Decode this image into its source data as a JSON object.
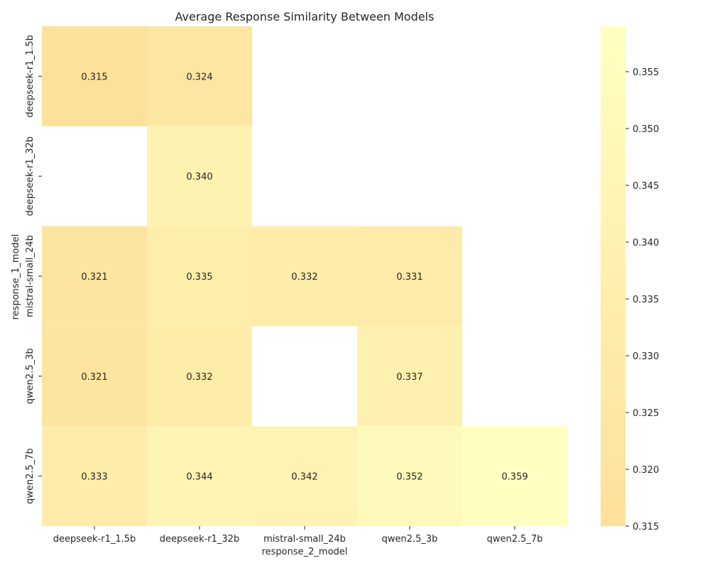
{
  "chart_data": {
    "type": "heatmap",
    "title": "Average Response Similarity Between Models",
    "xlabel": "response_2_model",
    "ylabel": "response_1_model",
    "x_categories": [
      "deepseek-r1_1.5b",
      "deepseek-r1_32b",
      "mistral-small_24b",
      "qwen2.5_3b",
      "qwen2.5_7b"
    ],
    "y_categories": [
      "deepseek-r1_1.5b",
      "deepseek-r1_32b",
      "mistral-small_24b",
      "qwen2.5_3b",
      "qwen2.5_7b"
    ],
    "values": [
      [
        0.315,
        0.324,
        null,
        null,
        null
      ],
      [
        null,
        0.34,
        null,
        null,
        null
      ],
      [
        0.321,
        0.335,
        0.332,
        0.331,
        null
      ],
      [
        0.321,
        0.332,
        null,
        0.337,
        null
      ],
      [
        0.333,
        0.344,
        0.342,
        0.352,
        0.359
      ]
    ],
    "value_labels": [
      [
        "0.315",
        "0.324",
        "",
        "",
        ""
      ],
      [
        "",
        "0.340",
        "",
        "",
        ""
      ],
      [
        "0.321",
        "0.335",
        "0.332",
        "0.331",
        ""
      ],
      [
        "0.321",
        "0.332",
        "",
        "0.337",
        ""
      ],
      [
        "0.333",
        "0.344",
        "0.342",
        "0.352",
        "0.359"
      ]
    ],
    "colorbar": {
      "range": [
        0.315,
        0.359
      ],
      "ticks": [
        0.315,
        0.32,
        0.325,
        0.33,
        0.335,
        0.34,
        0.345,
        0.35,
        0.355
      ],
      "tick_labels": [
        "0.315",
        "0.320",
        "0.325",
        "0.330",
        "0.335",
        "0.340",
        "0.345",
        "0.350",
        "0.355"
      ],
      "color_low": "#fde09a",
      "color_high": "#ffffc2"
    },
    "grid": false,
    "legend": "none"
  }
}
